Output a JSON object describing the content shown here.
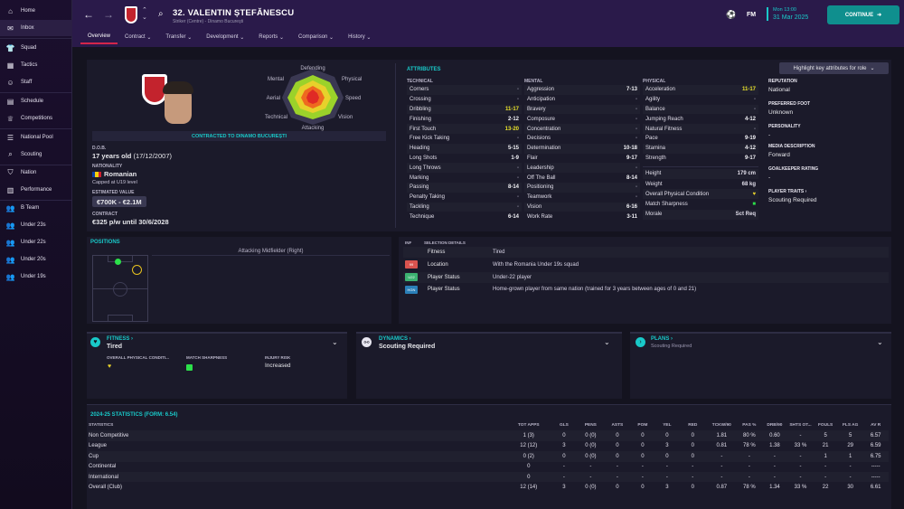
{
  "sidebar": {
    "items": [
      {
        "label": "Home",
        "icon": "home-icon"
      },
      {
        "label": "Inbox",
        "icon": "mail-icon"
      },
      {
        "label": "Squad",
        "icon": "shirt-icon"
      },
      {
        "label": "Tactics",
        "icon": "tactics-icon"
      },
      {
        "label": "Staff",
        "icon": "people-icon"
      },
      {
        "label": "Schedule",
        "icon": "calendar-icon"
      },
      {
        "label": "Competitions",
        "icon": "trophy-icon"
      },
      {
        "label": "National Pool",
        "icon": "list-icon"
      },
      {
        "label": "Scouting",
        "icon": "search-icon"
      },
      {
        "label": "Nation",
        "icon": "shield-icon"
      },
      {
        "label": "Performance",
        "icon": "chart-icon"
      },
      {
        "label": "B Team",
        "icon": "team-icon"
      },
      {
        "label": "Under 23s",
        "icon": "team-icon"
      },
      {
        "label": "Under 22s",
        "icon": "team-icon"
      },
      {
        "label": "Under 20s",
        "icon": "team-icon"
      },
      {
        "label": "Under 19s",
        "icon": "team-icon"
      }
    ]
  },
  "header": {
    "player_name": "32. VALENTIN ȘTEFĂNESCU",
    "subtitle": "Striker (Centre) - Dinamo Bucureşti",
    "date_time": "Mon 13:00",
    "date": "31 Mar 2025",
    "fm": "FM",
    "continue_label": "CONTINUE"
  },
  "tabs": [
    "Overview",
    "Contract",
    "Transfer",
    "Development",
    "Reports",
    "Comparison",
    "History"
  ],
  "profile": {
    "contract_banner": "CONTRACTED TO DINAMO BUCUREȘTI",
    "dob_label": "D.O.B.",
    "dob": "17 years old",
    "dob_date": "(17/12/2007)",
    "nationality_label": "NATIONALITY",
    "nationality": "Romanian",
    "caps": "Capped at U19 level",
    "value_label": "ESTIMATED VALUE",
    "value": "€700K - €2.1M",
    "contract_label": "CONTRACT",
    "contract": "€325 p/w until 30/6/2028"
  },
  "radar": {
    "labels": [
      "Defending",
      "Physical",
      "Speed",
      "Vision",
      "Attacking",
      "Technical",
      "Aerial",
      "Mental"
    ]
  },
  "attributes": {
    "title": "ATTRIBUTES",
    "highlight": "Highlight key attributes for role",
    "technical_label": "TECHNICAL",
    "mental_label": "MENTAL",
    "physical_label": "PHYSICAL",
    "technical": [
      [
        "Corners",
        "-"
      ],
      [
        "Crossing",
        "-"
      ],
      [
        "Dribbling",
        "11-17"
      ],
      [
        "Finishing",
        "2-12"
      ],
      [
        "First Touch",
        "13-20"
      ],
      [
        "Free Kick Taking",
        "-"
      ],
      [
        "Heading",
        "5-15"
      ],
      [
        "Long Shots",
        "1-9"
      ],
      [
        "Long Throws",
        "-"
      ],
      [
        "Marking",
        "-"
      ],
      [
        "Passing",
        "8-14"
      ],
      [
        "Penalty Taking",
        "-"
      ],
      [
        "Tackling",
        "-"
      ],
      [
        "Technique",
        "6-14"
      ]
    ],
    "mental": [
      [
        "Aggression",
        "7-13"
      ],
      [
        "Anticipation",
        "-"
      ],
      [
        "Bravery",
        "-"
      ],
      [
        "Composure",
        "-"
      ],
      [
        "Concentration",
        "-"
      ],
      [
        "Decisions",
        "-"
      ],
      [
        "Determination",
        "10-18"
      ],
      [
        "Flair",
        "9-17"
      ],
      [
        "Leadership",
        "-"
      ],
      [
        "Off The Ball",
        "8-14"
      ],
      [
        "Positioning",
        "-"
      ],
      [
        "Teamwork",
        "-"
      ],
      [
        "Vision",
        "6-16"
      ],
      [
        "Work Rate",
        "3-11"
      ]
    ],
    "physical": [
      [
        "Acceleration",
        "11-17"
      ],
      [
        "Agility",
        "-"
      ],
      [
        "Balance",
        "-"
      ],
      [
        "Jumping Reach",
        "4-12"
      ],
      [
        "Natural Fitness",
        "-"
      ],
      [
        "Pace",
        "9-19"
      ],
      [
        "Stamina",
        "4-12"
      ],
      [
        "Strength",
        "9-17"
      ]
    ],
    "extra": [
      [
        "Height",
        "179 cm"
      ],
      [
        "Weight",
        "68 kg"
      ],
      [
        "Overall Physical Condition",
        ""
      ],
      [
        "Match Sharpness",
        ""
      ],
      [
        "Morale",
        "Sct Req"
      ]
    ]
  },
  "info": {
    "reputation_label": "REPUTATION",
    "reputation": "National",
    "foot_label": "PREFERRED FOOT",
    "foot": "Unknown",
    "personality_label": "PERSONALITY",
    "personality": "-",
    "media_label": "MEDIA DESCRIPTION",
    "media": "Forward",
    "gk_label": "GOALKEEPER RATING",
    "gk": "-",
    "traits_label": "PLAYER TRAITS",
    "traits": "Scouting Required"
  },
  "positions": {
    "title": "POSITIONS",
    "role": "Attacking Midfielder (Right)"
  },
  "selection": {
    "inf_label": "INF",
    "details_label": "SELECTION DETAILS",
    "rows": [
      {
        "badge": "",
        "name": "Fitness",
        "value": "Tired",
        "color": ""
      },
      {
        "badge": "99",
        "name": "Location",
        "value": "With the Romania Under 19s squad",
        "color": "#d9534f"
      },
      {
        "badge": "U22",
        "name": "Player Status",
        "value": "Under-22 player",
        "color": "#3cb371"
      },
      {
        "badge": "HGN",
        "name": "Player Status",
        "value": "Home-grown player from same nation (trained for 3 years between ages of 0 and 21)",
        "color": "#2a7fb8"
      }
    ]
  },
  "cards": {
    "fitness_title": "FITNESS",
    "fitness_value": "Tired",
    "opc_label": "OVERALL PHYSICAL CONDITI...",
    "ms_label": "MATCH SHARPNESS",
    "injury_label": "INJURY RISK",
    "injury_value": "Increased",
    "dynamics_title": "DYNAMICS",
    "dynamics_value": "Scouting Required",
    "plans_title": "PLANS",
    "plans_value": "Scouting Required"
  },
  "stats": {
    "title": "2024-25 STATISTICS (FORM: 6.54)",
    "headers": [
      "STATISTICS",
      "TOT APPS",
      "GLS",
      "PENS",
      "ASTS",
      "POM",
      "YEL",
      "RED",
      "TCKW/90",
      "PAS %",
      "DRB/90",
      "SHTS OT...",
      "FOULS",
      "FLS AG",
      "AV R"
    ],
    "rows": [
      [
        "Non Competitive",
        "1 (3)",
        "0",
        "0 (0)",
        "0",
        "0",
        "0",
        "0",
        "1.81",
        "80 %",
        "0.60",
        "-",
        "5",
        "5",
        "6.57"
      ],
      [
        "League",
        "12 (12)",
        "3",
        "0 (0)",
        "0",
        "0",
        "3",
        "0",
        "0.81",
        "78 %",
        "1.38",
        "33 %",
        "21",
        "29",
        "6.59"
      ],
      [
        "Cup",
        "0 (2)",
        "0",
        "0 (0)",
        "0",
        "0",
        "0",
        "0",
        "-",
        "-",
        "-",
        "-",
        "1",
        "1",
        "6.75"
      ],
      [
        "Continental",
        "0",
        "-",
        "-",
        "-",
        "-",
        "-",
        "-",
        "-",
        "-",
        "-",
        "-",
        "-",
        "-",
        "-----"
      ],
      [
        "International",
        "0",
        "-",
        "-",
        "-",
        "-",
        "-",
        "-",
        "-",
        "-",
        "-",
        "-",
        "-",
        "-",
        "-----"
      ],
      [
        "Overall (Club)",
        "12 (14)",
        "3",
        "0 (0)",
        "0",
        "0",
        "3",
        "0",
        "0.87",
        "78 %",
        "1.34",
        "33 %",
        "22",
        "30",
        "6.61"
      ]
    ]
  },
  "colors": {
    "accent": "#19c9c9",
    "brand": "#c3232d",
    "topbar": "#2a1a4a",
    "panel": "#1b1a2a",
    "tab_active": "#d4264a"
  }
}
